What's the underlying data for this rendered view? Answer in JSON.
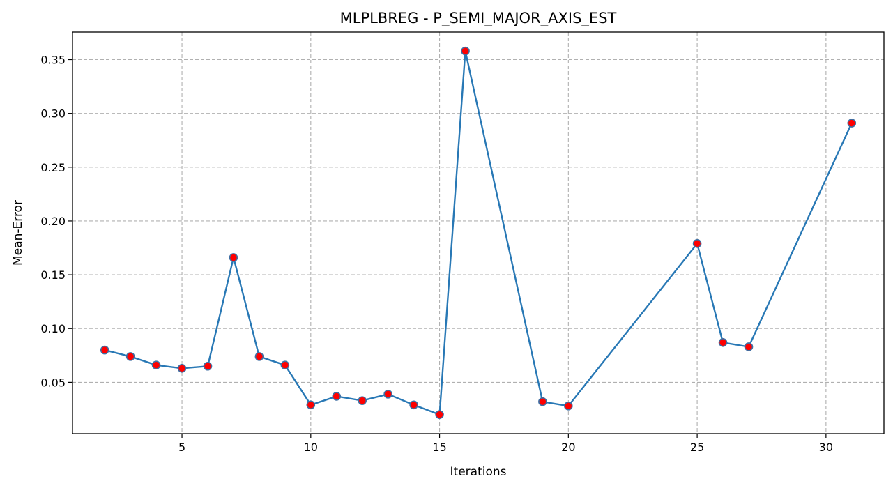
{
  "chart_data": {
    "type": "line",
    "title": "MLPLBREG - P_SEMI_MAJOR_AXIS_EST",
    "xlabel": "Iterations",
    "ylabel": "Mean-Error",
    "xlim": [
      0.75,
      32.25
    ],
    "ylim": [
      0.0023,
      0.3756
    ],
    "xticks": [
      5,
      10,
      15,
      20,
      25,
      30
    ],
    "xtick_labels": [
      "5",
      "10",
      "15",
      "20",
      "25",
      "30"
    ],
    "yticks": [
      0.05,
      0.1,
      0.15,
      0.2,
      0.25,
      0.3,
      0.35
    ],
    "ytick_labels": [
      "0.05",
      "0.10",
      "0.15",
      "0.20",
      "0.25",
      "0.30",
      "0.35"
    ],
    "grid": true,
    "legend": false,
    "colors": {
      "line": "#2878b5",
      "marker_fill": "#ff0000",
      "marker_edge": "#3f6fa3"
    },
    "series": [
      {
        "x": [
          2,
          3,
          4,
          5,
          6,
          7,
          8,
          9,
          10,
          11,
          12,
          13,
          14,
          15,
          16,
          19,
          20,
          25,
          26,
          27,
          31
        ],
        "y": [
          0.08,
          0.074,
          0.066,
          0.063,
          0.065,
          0.166,
          0.074,
          0.066,
          0.029,
          0.037,
          0.033,
          0.039,
          0.029,
          0.02,
          0.358,
          0.032,
          0.028,
          0.179,
          0.087,
          0.083,
          0.291
        ]
      }
    ]
  }
}
